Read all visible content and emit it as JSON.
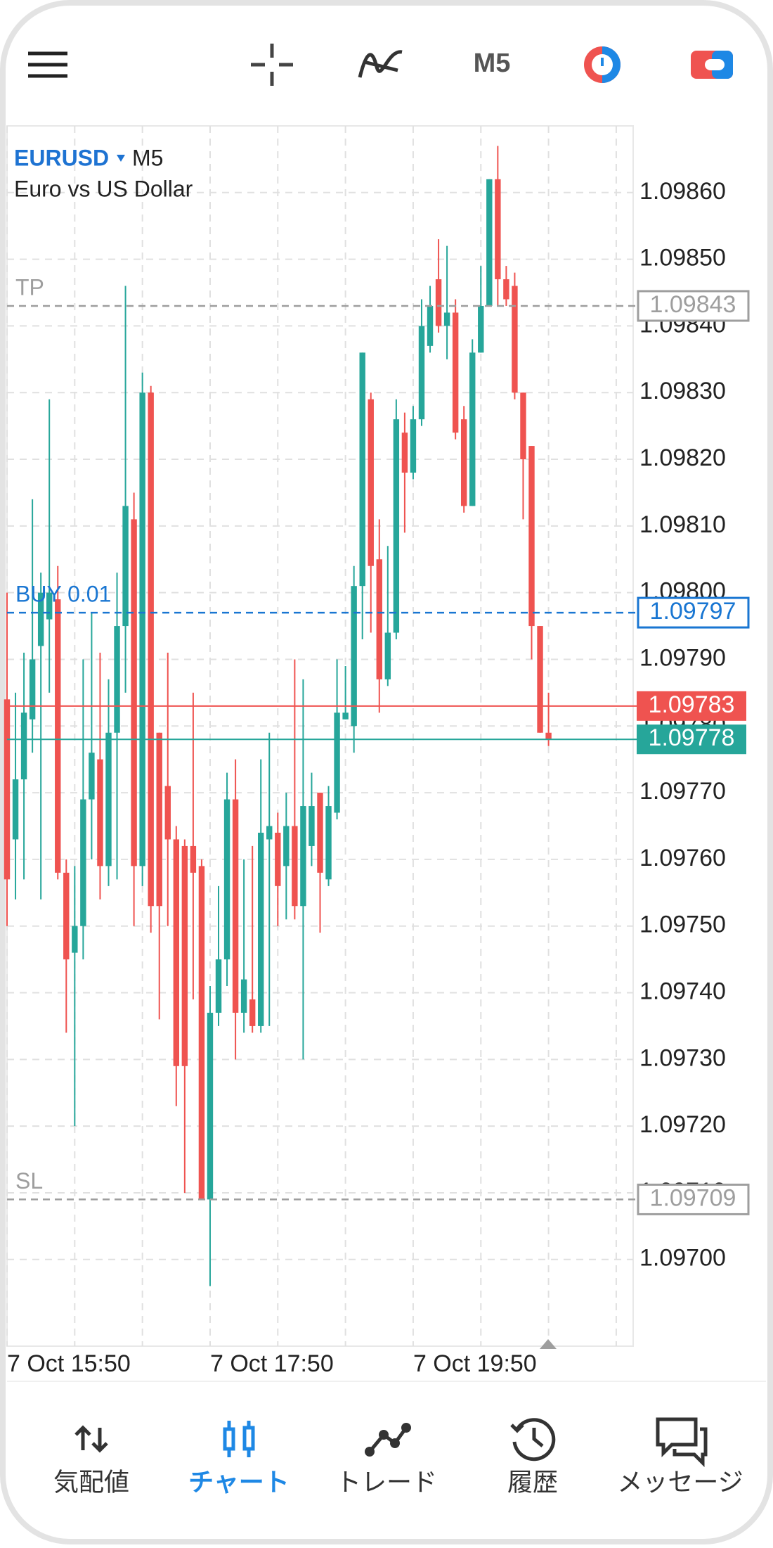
{
  "toolbar": {
    "timeframe": "M5"
  },
  "chart_data": {
    "type": "candlestick",
    "symbol": "EURUSD",
    "timeframe": "M5",
    "description": "Euro vs US Dollar",
    "up_color": "#26a69a",
    "down_color": "#ef5350",
    "open": [
      1.09784,
      1.09763,
      1.09772,
      1.09781,
      1.09792,
      1.09796,
      1.09799,
      1.09758,
      1.09746,
      1.0975,
      1.09769,
      1.09775,
      1.09759,
      1.09779,
      1.09795,
      1.09811,
      1.09759,
      1.0983,
      1.09779,
      1.09771,
      1.09763,
      1.09762,
      1.09762,
      1.09759,
      1.09709,
      1.09737,
      1.09745,
      1.09769,
      1.09737,
      1.09739,
      1.09735,
      1.09763,
      1.09764,
      1.09759,
      1.09765,
      1.09753,
      1.09762,
      1.0977,
      1.09757,
      1.09767,
      1.09781,
      1.0978,
      1.09801,
      1.09829,
      1.09805,
      1.09787,
      1.09794,
      1.09824,
      1.09818,
      1.09826,
      1.09837,
      1.09847,
      1.0984,
      1.09842,
      1.09826,
      1.09813,
      1.09836,
      1.09843,
      1.09862,
      1.09847,
      1.09846,
      1.0983,
      1.09822,
      1.09795,
      1.09779
    ],
    "high": [
      1.098,
      1.09785,
      1.09791,
      1.09814,
      1.09803,
      1.09829,
      1.09804,
      1.0976,
      1.09759,
      1.0979,
      1.09797,
      1.09791,
      1.09787,
      1.09803,
      1.09846,
      1.09815,
      1.09833,
      1.09831,
      1.09779,
      1.09791,
      1.09765,
      1.09763,
      1.09785,
      1.0976,
      1.09741,
      1.09756,
      1.09773,
      1.09775,
      1.0976,
      1.09762,
      1.09775,
      1.09779,
      1.09767,
      1.0977,
      1.0979,
      1.09787,
      1.09773,
      1.0977,
      1.09771,
      1.0979,
      1.09789,
      1.09804,
      1.09836,
      1.0983,
      1.09811,
      1.09807,
      1.09829,
      1.09827,
      1.09828,
      1.09844,
      1.09846,
      1.09853,
      1.09852,
      1.09844,
      1.09828,
      1.09838,
      1.09849,
      1.09862,
      1.09867,
      1.09849,
      1.09848,
      1.0983,
      1.09822,
      1.09795,
      1.09785
    ],
    "low": [
      1.0975,
      1.09754,
      1.09757,
      1.09776,
      1.09754,
      1.09785,
      1.09757,
      1.09734,
      1.0972,
      1.09745,
      1.0976,
      1.09754,
      1.09756,
      1.09757,
      1.09785,
      1.0975,
      1.09756,
      1.09749,
      1.09736,
      1.0975,
      1.09723,
      1.0971,
      1.09739,
      1.09709,
      1.09696,
      1.09735,
      1.09741,
      1.0973,
      1.09734,
      1.09734,
      1.09734,
      1.09735,
      1.0975,
      1.09751,
      1.09751,
      1.0973,
      1.09759,
      1.09749,
      1.09756,
      1.09766,
      1.09781,
      1.09776,
      1.09793,
      1.09794,
      1.09782,
      1.09786,
      1.09793,
      1.09809,
      1.09817,
      1.09825,
      1.09836,
      1.09839,
      1.09835,
      1.09823,
      1.09812,
      1.09813,
      1.09836,
      1.09843,
      1.09843,
      1.09843,
      1.09829,
      1.09811,
      1.0979,
      1.09779,
      1.09777
    ],
    "close": [
      1.09757,
      1.09772,
      1.09782,
      1.0979,
      1.098,
      1.098,
      1.09758,
      1.09745,
      1.0975,
      1.09769,
      1.09776,
      1.09759,
      1.09779,
      1.09795,
      1.09813,
      1.09759,
      1.0983,
      1.09753,
      1.09753,
      1.09763,
      1.09729,
      1.09729,
      1.09758,
      1.09709,
      1.09737,
      1.09745,
      1.09769,
      1.09737,
      1.09742,
      1.09735,
      1.09764,
      1.09765,
      1.09756,
      1.09765,
      1.09753,
      1.09768,
      1.09768,
      1.09758,
      1.09768,
      1.09782,
      1.09782,
      1.09801,
      1.09836,
      1.09804,
      1.09787,
      1.09794,
      1.09826,
      1.09818,
      1.09826,
      1.0984,
      1.09843,
      1.0984,
      1.09842,
      1.09824,
      1.09813,
      1.09836,
      1.09843,
      1.09862,
      1.09847,
      1.09844,
      1.0983,
      1.0982,
      1.09795,
      1.09779,
      1.09778
    ],
    "xlim": [
      0,
      74
    ],
    "xticks": [
      {
        "value": 0,
        "label": "7 Oct 15:50"
      },
      {
        "value": 24,
        "label": "7 Oct 17:50"
      },
      {
        "value": 48,
        "label": "7 Oct 19:50"
      }
    ],
    "xgrid": [
      8,
      16,
      32,
      40,
      56,
      64,
      72
    ],
    "ylim": [
      1.09687,
      1.0987
    ],
    "yticks": [
      {
        "value": 1.097,
        "label": "1.09700"
      },
      {
        "value": 1.0971,
        "label": "1.09710"
      },
      {
        "value": 1.0972,
        "label": "1.09720"
      },
      {
        "value": 1.0973,
        "label": "1.09730"
      },
      {
        "value": 1.0974,
        "label": "1.09740"
      },
      {
        "value": 1.0975,
        "label": "1.09750"
      },
      {
        "value": 1.0976,
        "label": "1.09760"
      },
      {
        "value": 1.0977,
        "label": "1.09770"
      },
      {
        "value": 1.0978,
        "label": "1.09780"
      },
      {
        "value": 1.0979,
        "label": "1.09790"
      },
      {
        "value": 1.098,
        "label": "1.09800"
      },
      {
        "value": 1.0981,
        "label": "1.09810"
      },
      {
        "value": 1.0982,
        "label": "1.09820"
      },
      {
        "value": 1.0983,
        "label": "1.09830"
      },
      {
        "value": 1.0984,
        "label": "1.09840"
      },
      {
        "value": 1.0985,
        "label": "1.09850"
      },
      {
        "value": 1.0986,
        "label": "1.09860"
      }
    ],
    "grid": true,
    "levels": [
      {
        "name": "TP",
        "value": 1.09843,
        "color": "#9e9e9e",
        "line_style": "dashed"
      },
      {
        "name": "BUY 0.01",
        "value": 1.09797,
        "color": "#1976d2",
        "line_style": "dashed"
      },
      {
        "name": "SL",
        "value": 1.09709,
        "color": "#9e9e9e",
        "line_style": "dashed"
      }
    ],
    "bid": {
      "value": 1.09783,
      "color": "#ef5350"
    },
    "ask": {
      "value": 1.09778,
      "color": "#26a69a"
    }
  },
  "nav": [
    "気配値",
    "チャート",
    "トレード",
    "履歴",
    "メッセージ"
  ],
  "nav_active": 1
}
